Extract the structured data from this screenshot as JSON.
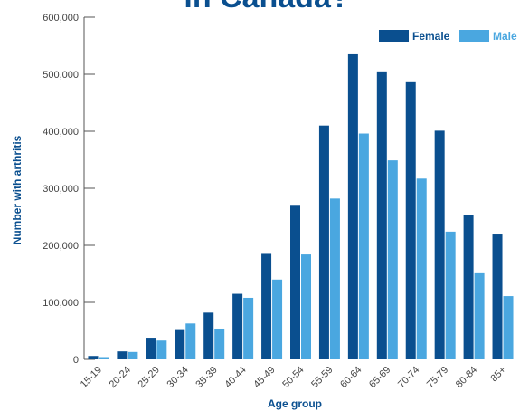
{
  "colors": {
    "female": "#0a4f8f",
    "male": "#4aa7e0",
    "title": "#0a4f8f",
    "axis": "#555555"
  },
  "chart_data": {
    "type": "bar",
    "title": "in Canada?",
    "xlabel": "Age group",
    "ylabel": "Number with arthritis",
    "ylim": [
      0,
      600000
    ],
    "yticks": [
      0,
      100000,
      200000,
      300000,
      400000,
      500000,
      600000
    ],
    "ytick_labels": [
      "0",
      "100,000",
      "200,000",
      "300,000",
      "400,000",
      "500,000",
      "600,000"
    ],
    "legend_position": "top-right",
    "grid": false,
    "categories": [
      "15-19",
      "20-24",
      "25-29",
      "30-34",
      "35-39",
      "40-44",
      "45-49",
      "50-54",
      "55-59",
      "60-64",
      "65-69",
      "70-74",
      "75-79",
      "80-84",
      "85+"
    ],
    "series": [
      {
        "name": "Female",
        "values": [
          6000,
          14000,
          38000,
          53000,
          82000,
          115000,
          185000,
          271000,
          410000,
          535000,
          505000,
          486000,
          401000,
          253000,
          219000
        ]
      },
      {
        "name": "Male",
        "values": [
          4000,
          13000,
          33000,
          63000,
          54000,
          108000,
          140000,
          184000,
          282000,
          396000,
          349000,
          317000,
          224000,
          151000,
          111000
        ]
      }
    ]
  }
}
